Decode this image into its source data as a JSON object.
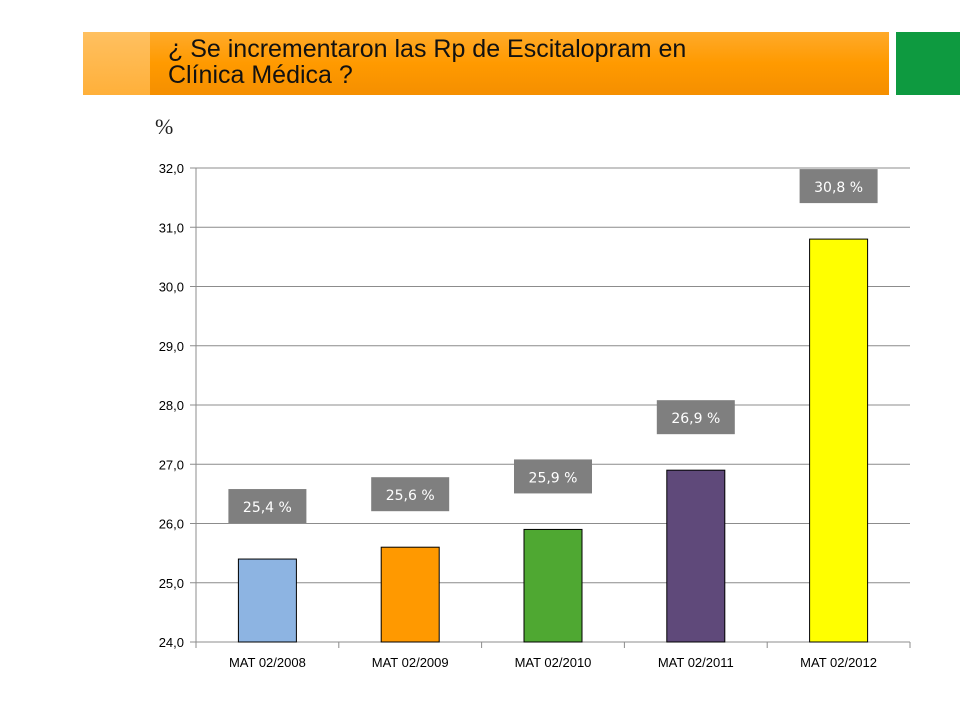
{
  "slide": {
    "title_line1": "¿ Se incrementaron las Rp de Escitalopram en",
    "title_line2": "Clínica Médica ?",
    "unit_label": "%",
    "colors": {
      "title_bar": "#ff9a00",
      "green_block": "#0e9a40"
    }
  },
  "chart_data": {
    "type": "bar",
    "title": "",
    "xlabel": "",
    "ylabel": "%",
    "categories": [
      "MAT 02/2008",
      "MAT 02/2009",
      "MAT 02/2010",
      "MAT 02/2011",
      "MAT 02/2012"
    ],
    "values": [
      25.4,
      25.6,
      25.9,
      26.9,
      30.8
    ],
    "data_labels": [
      "25,4 %",
      "25,6 %",
      "25,9 %",
      "26,9 %",
      "30,8 %"
    ],
    "bar_colors": [
      "#8db4e2",
      "#ff9900",
      "#4fa832",
      "#5f497a",
      "#ffff00"
    ],
    "ylim": [
      24,
      32
    ],
    "yticks": [
      24,
      25,
      26,
      27,
      28,
      29,
      30,
      31,
      32
    ],
    "ytick_labels": [
      "24,0",
      "25,0",
      "26,0",
      "27,0",
      "28,0",
      "29,0",
      "30,0",
      "31,0",
      "32,0"
    ],
    "grid": true,
    "legend": "none"
  }
}
